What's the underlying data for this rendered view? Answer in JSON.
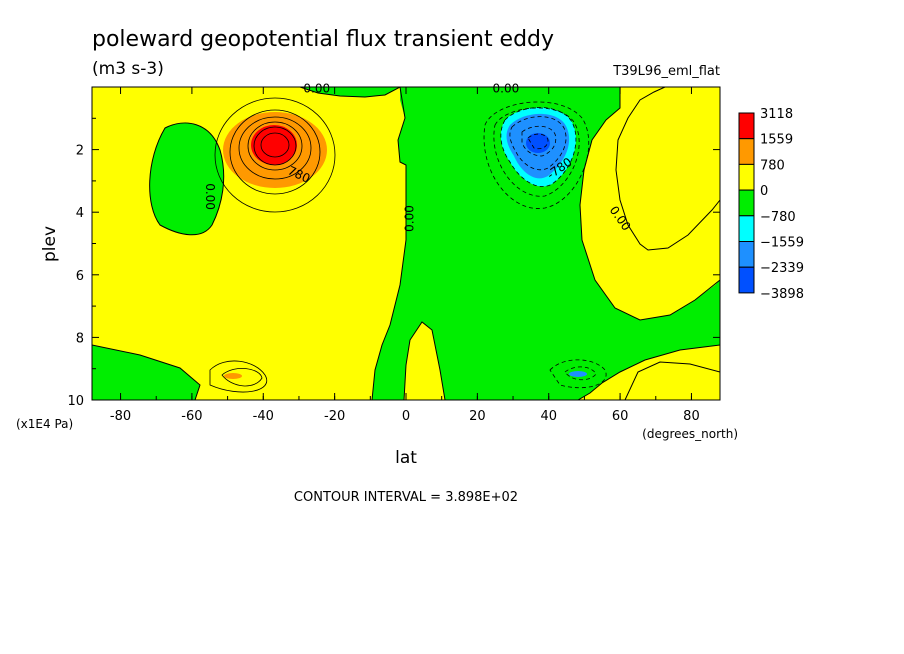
{
  "chart_data": {
    "type": "heatmap",
    "title": "poleward geopotential flux transient eddy",
    "units": "(m3 s-3)",
    "run_label": "T39L96_eml_flat",
    "xlabel": "lat",
    "xunit": "(degrees_north)",
    "ylabel": "plev",
    "yunit": "(x1E4 Pa)",
    "xlim": [
      -88,
      88
    ],
    "ylim": [
      10,
      0
    ],
    "x_ticks": [
      -80,
      -60,
      -40,
      -20,
      0,
      20,
      40,
      60,
      80
    ],
    "y_ticks": [
      2,
      4,
      6,
      8,
      10
    ],
    "contour_interval_text": "CONTOUR INTERVAL = 3.898E+02",
    "contour_interval": 389.8,
    "legend": {
      "position": "right",
      "levels": [
        "3118",
        "1559",
        "780",
        "0",
        "-780",
        "-1559",
        "-2339",
        "-3898"
      ],
      "colors": [
        "#ff0000",
        "#ff9900",
        "#ffff00",
        "#00ee00",
        "#00ffff",
        "#1e90ff",
        "#0050ff"
      ]
    },
    "contour_labels": [
      {
        "text": "0.00",
        "lat": -25,
        "plev": 0.05,
        "rotate": 0
      },
      {
        "text": "0.00",
        "lat": 28,
        "plev": 0.05,
        "rotate": 0
      },
      {
        "text": "0.00",
        "lat": -55,
        "plev": 3.5,
        "rotate": 90
      },
      {
        "text": "0.00",
        "lat": 1,
        "plev": 4.2,
        "rotate": -90
      },
      {
        "text": "0.00",
        "lat": 60,
        "plev": 4.2,
        "rotate": 55
      },
      {
        "text": "780",
        "lat": -30,
        "plev": 2.8,
        "rotate": 25
      },
      {
        "text": "-780",
        "lat": 43,
        "plev": 2.6,
        "rotate": -35
      }
    ]
  }
}
